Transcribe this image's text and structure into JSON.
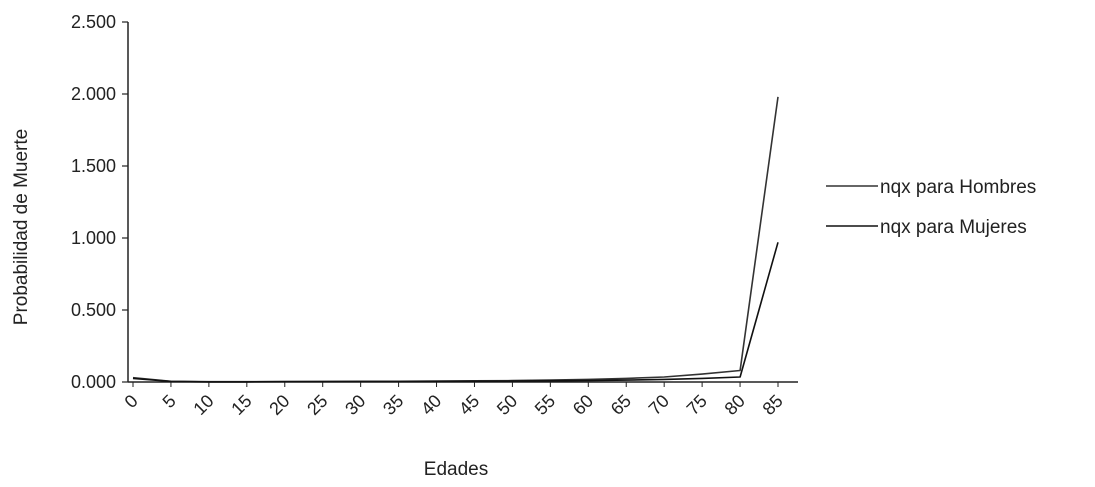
{
  "chart_data": {
    "type": "line",
    "x": [
      0,
      5,
      10,
      15,
      20,
      25,
      30,
      35,
      40,
      45,
      50,
      55,
      60,
      65,
      70,
      75,
      80,
      85
    ],
    "x_ticks": [
      "0",
      "5",
      "10",
      "15",
      "20",
      "25",
      "30",
      "35",
      "40",
      "45",
      "50",
      "55",
      "60",
      "65",
      "70",
      "75",
      "80",
      "85"
    ],
    "y_ticks": [
      "0.000",
      "0.500",
      "1.000",
      "1.500",
      "2.000",
      "2.500"
    ],
    "ylim": [
      0,
      2.5
    ],
    "xlabel": "Edades",
    "ylabel": "Probabilidad de Muerte",
    "series": [
      {
        "name": "nqx para Hombres",
        "color": "#333333",
        "values": [
          0.03,
          0.005,
          0.002,
          0.002,
          0.003,
          0.004,
          0.005,
          0.005,
          0.006,
          0.008,
          0.01,
          0.014,
          0.018,
          0.025,
          0.035,
          0.055,
          0.08,
          1.98
        ]
      },
      {
        "name": "nqx para Mujeres",
        "color": "#111111",
        "values": [
          0.025,
          0.004,
          0.001,
          0.001,
          0.002,
          0.002,
          0.003,
          0.003,
          0.004,
          0.005,
          0.006,
          0.008,
          0.01,
          0.013,
          0.018,
          0.025,
          0.035,
          0.97
        ]
      }
    ],
    "grid": false,
    "legend_position": "right"
  }
}
